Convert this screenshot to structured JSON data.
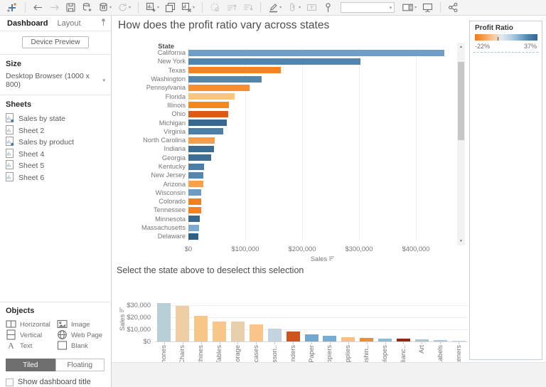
{
  "toolbar": {
    "groups": [
      [
        "tableau-logo"
      ],
      [
        "undo",
        "redo",
        "save",
        "new-data-source",
        "pause-auto-updates",
        "refresh"
      ],
      [
        "new-worksheet",
        "duplicate",
        "clear-sheet"
      ],
      [
        "group",
        "sort-ascending",
        "sort-descending"
      ],
      [
        "highlight",
        "format-clip",
        "text-label",
        "pin",
        "fit-dropdown",
        "show-me",
        "presentation"
      ],
      [
        "share"
      ]
    ],
    "disabled": [
      "redo",
      "refresh",
      "group",
      "sort-ascending",
      "sort-descending",
      "format-clip",
      "text-label"
    ],
    "with_caret": [
      "pause-auto-updates",
      "refresh",
      "new-worksheet",
      "clear-sheet",
      "highlight",
      "format-clip",
      "show-me"
    ],
    "fit_dropdown": {
      "value": ""
    }
  },
  "sidebar": {
    "tabs": [
      {
        "label": "Dashboard",
        "active": true
      },
      {
        "label": "Layout",
        "active": false
      }
    ],
    "device_preview_label": "Device Preview",
    "size": {
      "heading": "Size",
      "value": "Desktop Browser (1000 x 800)"
    },
    "sheets": {
      "heading": "Sheets",
      "items": [
        {
          "label": "Sales by state",
          "in_use": true
        },
        {
          "label": "Sheet 2",
          "in_use": false
        },
        {
          "label": "Sales by product",
          "in_use": true
        },
        {
          "label": "Sheet 4",
          "in_use": false
        },
        {
          "label": "Sheet 5",
          "in_use": false
        },
        {
          "label": "Sheet 6",
          "in_use": false
        }
      ]
    },
    "objects": {
      "heading": "Objects",
      "items": [
        {
          "label": "Horizontal",
          "icon": "horizontal-container-icon"
        },
        {
          "label": "Image",
          "icon": "image-icon"
        },
        {
          "label": "Vertical",
          "icon": "vertical-container-icon"
        },
        {
          "label": "Web Page",
          "icon": "web-page-icon"
        },
        {
          "label": "Text",
          "icon": "text-icon"
        },
        {
          "label": "Blank",
          "icon": "blank-icon"
        }
      ],
      "mode_buttons": [
        {
          "label": "Tiled",
          "active": true
        },
        {
          "label": "Floating",
          "active": false
        }
      ]
    },
    "show_title_checkbox": {
      "label": "Show dashboard title",
      "checked": false
    }
  },
  "main": {
    "title": "How does the profit ratio vary across states",
    "subtitle": "Select the state above to deselect this selection"
  },
  "legend": {
    "title": "Profit Ratio",
    "min_label": "-22%",
    "max_label": "37%",
    "gradient": [
      "#ef7b13",
      "#f59d50",
      "#f9c99c",
      "#dfe9ef",
      "#b7d2e3",
      "#7fafd0",
      "#4c84ab",
      "#2e6795"
    ]
  },
  "chart_data": [
    {
      "type": "bar",
      "orientation": "horizontal",
      "title": "How does the profit ratio vary across states",
      "row_header": "State",
      "xlabel": "Sales",
      "x_ticks": [
        "$0",
        "$100,000",
        "$200,000",
        "$300,000",
        "$400,000"
      ],
      "xlim": [
        0,
        472000
      ],
      "color_meaning": "Profit Ratio, -22% orange to 37% blue",
      "categories": [
        "California",
        "New York",
        "Texas",
        "Washington",
        "Pennsylvania",
        "Florida",
        "Illinois",
        "Ohio",
        "Michigan",
        "Virginia",
        "North Carolina",
        "Indiana",
        "Georgia",
        "Kentucky",
        "New Jersey",
        "Arizona",
        "Wisconsin",
        "Colorado",
        "Tennessee",
        "Minnesota",
        "Massachusetts",
        "Delaware"
      ],
      "values": [
        450000,
        303000,
        163000,
        129000,
        107000,
        81000,
        71000,
        70000,
        68000,
        61000,
        46000,
        45000,
        40000,
        28000,
        26000,
        26000,
        23000,
        23000,
        22000,
        20000,
        19000,
        18000
      ],
      "colors": [
        "#6f9fc8",
        "#5185ad",
        "#f58321",
        "#5586ad",
        "#f78d30",
        "#fcc577",
        "#f5871f",
        "#dd5a1d",
        "#38688f",
        "#4d7ea6",
        "#f89d49",
        "#3a6d94",
        "#3d6f96",
        "#4b7da5",
        "#5587ae",
        "#faa04d",
        "#6b9cc4",
        "#f07f1d",
        "#f2831f",
        "#39688f",
        "#7dabcf",
        "#2e5f85"
      ]
    },
    {
      "type": "bar",
      "orientation": "vertical",
      "title": "Select the state above to deselect this selection",
      "ylabel": "Sales",
      "y_ticks": [
        "$0",
        "$10,000",
        "$20,000",
        "$30,000"
      ],
      "ylim": [
        0,
        35000
      ],
      "categories": [
        "Phones",
        "Chairs",
        "achines",
        "Tables",
        "Storage",
        "okcases",
        "cessori..",
        "Binders",
        "Paper",
        "Copiers",
        "upplies",
        "rnishin..",
        "velopes",
        "plianc..",
        "Art",
        "Labels",
        "steners"
      ],
      "values": [
        32000,
        29500,
        21000,
        16500,
        16500,
        14000,
        10500,
        8000,
        6000,
        4500,
        3500,
        3000,
        2400,
        2400,
        2000,
        900,
        400
      ],
      "colors": [
        "#b9cfd8",
        "#eccda4",
        "#f9c689",
        "#f9c689",
        "#e8d0ad",
        "#f9c487",
        "#c2d4dc",
        "#d1531c",
        "#72a8cf",
        "#77abd1",
        "#fac27e",
        "#f58d2a",
        "#8cbbd9",
        "#8e2a11",
        "#a9c5cf",
        "#a5cbe2",
        "#b9d7ea"
      ]
    }
  ]
}
